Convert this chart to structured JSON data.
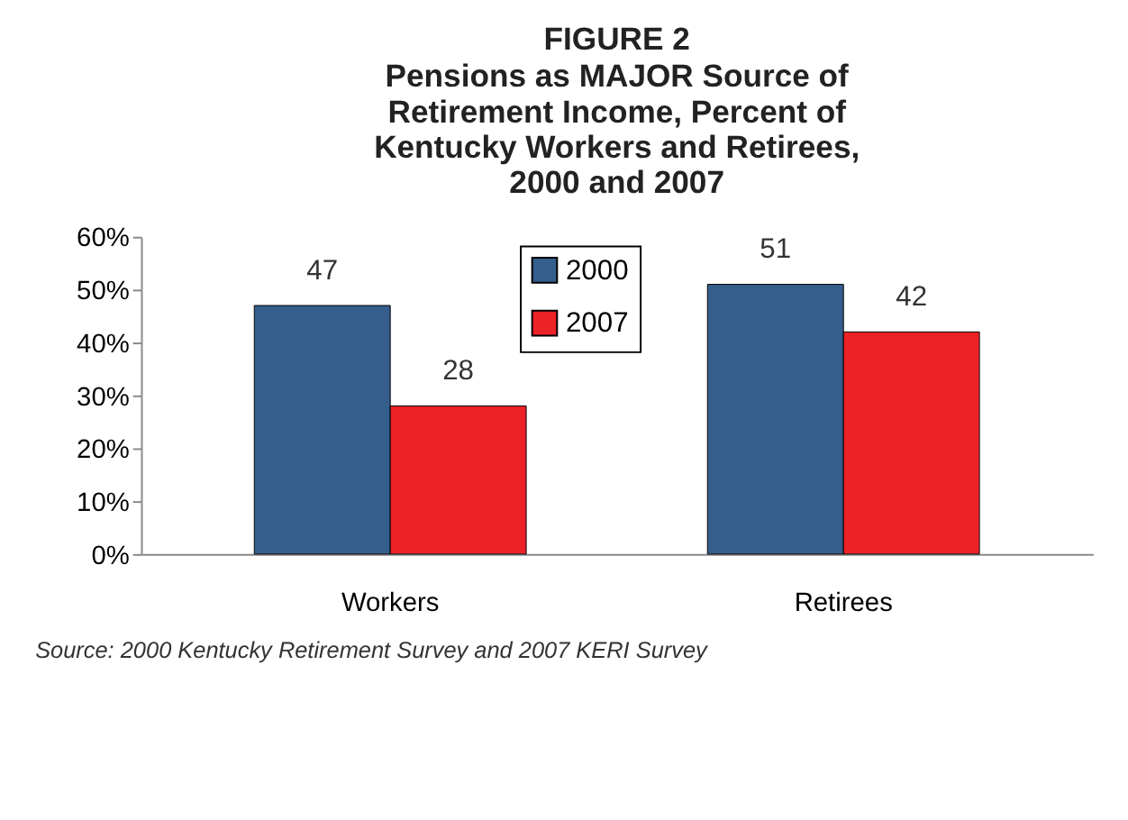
{
  "chart_data": {
    "type": "bar",
    "title": "FIGURE 2",
    "subtitle": "Pensions as MAJOR Source of Retirement Income, Percent of Kentucky Workers and Retirees, 2000 and 2007",
    "categories": [
      "Workers",
      "Retirees"
    ],
    "series": [
      {
        "name": "2000",
        "color": "#355e8c",
        "values": [
          47,
          51
        ]
      },
      {
        "name": "2007",
        "color": "#ec2227",
        "values": [
          28,
          42
        ]
      }
    ],
    "ylim": [
      0,
      60
    ],
    "yticks": [
      {
        "value": 0,
        "label": "0%"
      },
      {
        "value": 10,
        "label": "10%"
      },
      {
        "value": 20,
        "label": "20%"
      },
      {
        "value": 30,
        "label": "30%"
      },
      {
        "value": 40,
        "label": "40%"
      },
      {
        "value": 50,
        "label": "50%"
      },
      {
        "value": 60,
        "label": "60%"
      }
    ],
    "data_labels": true,
    "grid": false,
    "legend": "top",
    "annotations": [
      "Source: 2000 Kentucky Retirement Survey and 2007 KERI Survey"
    ]
  }
}
